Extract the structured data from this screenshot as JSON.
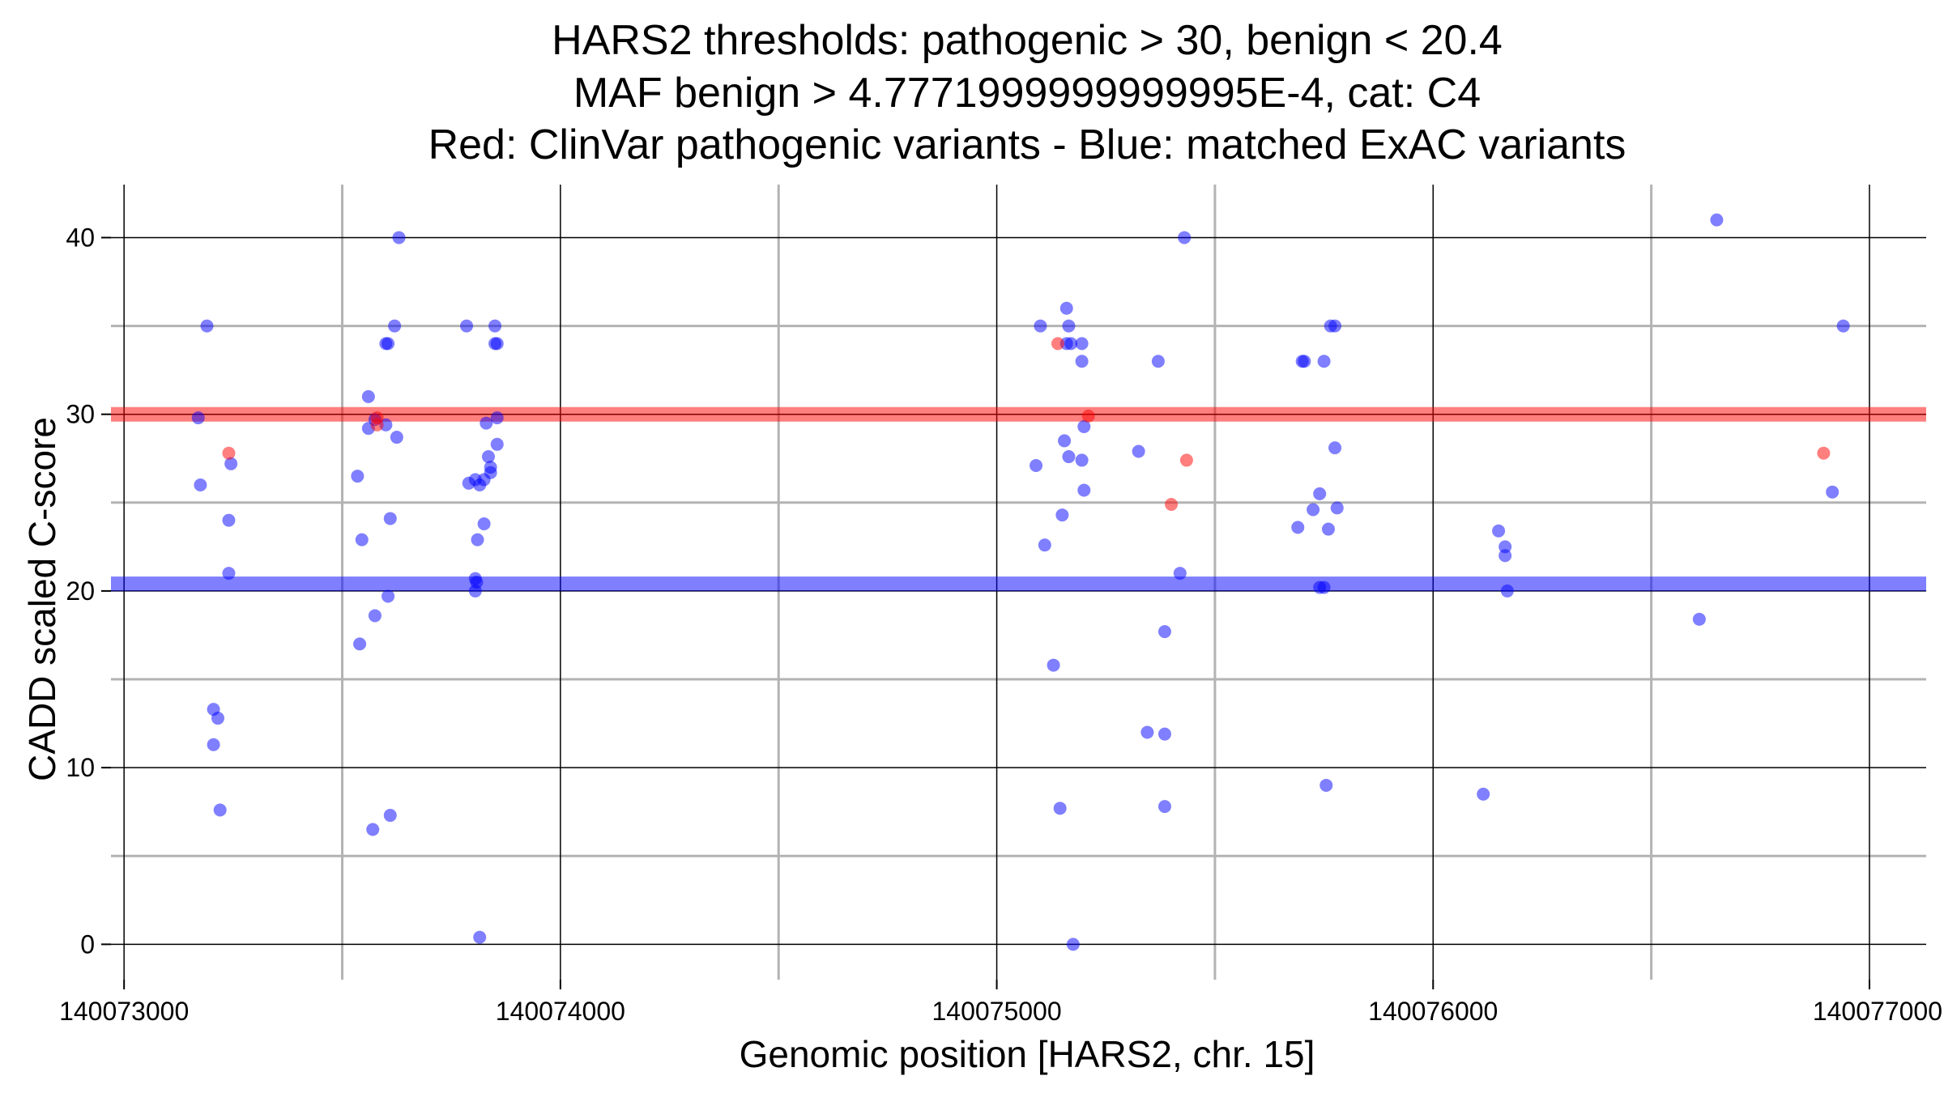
{
  "chart_data": {
    "type": "scatter",
    "title": [
      "HARS2 thresholds: pathogenic > 30, benign < 20.4",
      "MAF benign > 4.7771999999999995E-4, cat: C4",
      "Red: ClinVar pathogenic variants - Blue: matched ExAC variants"
    ],
    "xlabel": "Genomic position [HARS2, chr. 15]",
    "ylabel": "CADD scaled C-score",
    "xlim": [
      140072970,
      140077130
    ],
    "ylim": [
      -2,
      43
    ],
    "x_ticks": [
      140073000,
      140074000,
      140075000,
      140076000,
      140077000
    ],
    "x_tick_labels": [
      "140073000",
      "140074000",
      "140075000",
      "140076000",
      "140077000"
    ],
    "y_ticks": [
      0,
      10,
      20,
      30,
      40
    ],
    "y_tick_labels": [
      "0",
      "10",
      "20",
      "30",
      "40"
    ],
    "grid": true,
    "thresholds": {
      "pathogenic": {
        "value": 30,
        "color": "#ff0000"
      },
      "benign": {
        "value": 20.4,
        "color": "#0000ff"
      }
    },
    "series": [
      {
        "color": "#0000ff",
        "points": [
          [
            140073190,
            35
          ],
          [
            140073170,
            29.8
          ],
          [
            140073175,
            26
          ],
          [
            140073245,
            27.2
          ],
          [
            140073240,
            24
          ],
          [
            140073240,
            21
          ],
          [
            140073205,
            13.3
          ],
          [
            140073215,
            12.8
          ],
          [
            140073205,
            11.3
          ],
          [
            140073220,
            7.6
          ],
          [
            140073535,
            26.5
          ],
          [
            140073545,
            22.9
          ],
          [
            140073540,
            17
          ],
          [
            140073560,
            31
          ],
          [
            140073560,
            29.2
          ],
          [
            140073575,
            29.7
          ],
          [
            140073600,
            29.4
          ],
          [
            140073575,
            18.6
          ],
          [
            140073605,
            19.7
          ],
          [
            140073610,
            24.1
          ],
          [
            140073570,
            6.5
          ],
          [
            140073610,
            7.3
          ],
          [
            140073600,
            34
          ],
          [
            140073605,
            34
          ],
          [
            140073620,
            35
          ],
          [
            140073625,
            28.7
          ],
          [
            140073630,
            40
          ],
          [
            140073785,
            35
          ],
          [
            140073790,
            26.1
          ],
          [
            140073805,
            26.3
          ],
          [
            140073815,
            26
          ],
          [
            140073825,
            26.3
          ],
          [
            140073840,
            26.7
          ],
          [
            140073840,
            27
          ],
          [
            140073835,
            27.6
          ],
          [
            140073855,
            28.3
          ],
          [
            140073830,
            29.5
          ],
          [
            140073855,
            29.8
          ],
          [
            140073825,
            23.8
          ],
          [
            140073810,
            22.9
          ],
          [
            140073805,
            20.7
          ],
          [
            140073808,
            20.5
          ],
          [
            140073805,
            20
          ],
          [
            140073815,
            0.4
          ],
          [
            140073850,
            35
          ],
          [
            140073850,
            34
          ],
          [
            140073855,
            34
          ],
          [
            140075100,
            35
          ],
          [
            140075090,
            27.1
          ],
          [
            140075110,
            22.6
          ],
          [
            140075130,
            15.8
          ],
          [
            140075150,
            24.3
          ],
          [
            140075155,
            28.5
          ],
          [
            140075165,
            27.6
          ],
          [
            140075160,
            36
          ],
          [
            140075165,
            35
          ],
          [
            140075160,
            34
          ],
          [
            140075170,
            34
          ],
          [
            140075195,
            34
          ],
          [
            140075195,
            33
          ],
          [
            140075200,
            29.3
          ],
          [
            140075195,
            27.4
          ],
          [
            140075200,
            25.7
          ],
          [
            140075145,
            7.7
          ],
          [
            140075175,
            0
          ],
          [
            140075325,
            27.9
          ],
          [
            140075370,
            33
          ],
          [
            140075385,
            17.7
          ],
          [
            140075345,
            12
          ],
          [
            140075385,
            11.9
          ],
          [
            140075385,
            7.8
          ],
          [
            140075420,
            21
          ],
          [
            140075430,
            40
          ],
          [
            140075690,
            23.6
          ],
          [
            140075700,
            33
          ],
          [
            140075705,
            33
          ],
          [
            140075725,
            24.6
          ],
          [
            140075740,
            25.5
          ],
          [
            140075750,
            33
          ],
          [
            140075740,
            20.2
          ],
          [
            140075750,
            20.2
          ],
          [
            140075760,
            23.5
          ],
          [
            140075765,
            35
          ],
          [
            140075775,
            35
          ],
          [
            140075775,
            28.1
          ],
          [
            140075780,
            24.7
          ],
          [
            140075755,
            9
          ],
          [
            140076150,
            23.4
          ],
          [
            140076165,
            22.5
          ],
          [
            140076165,
            22
          ],
          [
            140076170,
            20
          ],
          [
            140076115,
            8.5
          ],
          [
            140076610,
            18.4
          ],
          [
            140076650,
            41
          ],
          [
            140076915,
            25.6
          ],
          [
            140076940,
            35
          ]
        ]
      },
      {
        "color": "#ff0000",
        "points": [
          [
            140073240,
            27.8
          ],
          [
            140073580,
            29.8
          ],
          [
            140073580,
            29.4
          ],
          [
            140075140,
            34
          ],
          [
            140075210,
            29.9
          ],
          [
            140075400,
            24.9
          ],
          [
            140075435,
            27.4
          ],
          [
            140076895,
            27.8
          ]
        ]
      }
    ]
  }
}
